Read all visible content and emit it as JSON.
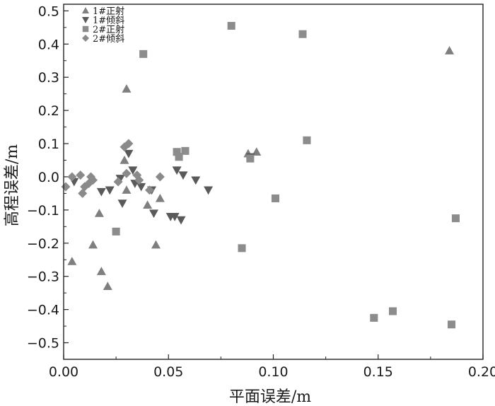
{
  "chart_data": {
    "type": "scatter",
    "title": "",
    "xlabel": "平面误差/m",
    "ylabel": "高程误差/m",
    "xlim": [
      0,
      0.2
    ],
    "ylim": [
      -0.55,
      0.52
    ],
    "xticks": [
      "0.00",
      "0.05",
      "0.10",
      "0.15",
      "0.20"
    ],
    "yticks": [
      "0.5",
      "0.4",
      "0.3",
      "0.2",
      "0.1",
      "0.0",
      "−0.1",
      "−0.2",
      "−0.3",
      "−0.4",
      "−0.5"
    ],
    "grid": false,
    "legend_position": "top-left",
    "series": [
      {
        "name": "1#正射",
        "marker": "triangle-up",
        "color": "#7f7f7f",
        "points": [
          [
            0.004,
            -0.255
          ],
          [
            0.014,
            -0.205
          ],
          [
            0.017,
            -0.11
          ],
          [
            0.018,
            -0.285
          ],
          [
            0.021,
            -0.33
          ],
          [
            0.029,
            0.05
          ],
          [
            0.03,
            0.265
          ],
          [
            0.03,
            -0.04
          ],
          [
            0.04,
            -0.085
          ],
          [
            0.044,
            -0.205
          ],
          [
            0.046,
            -0.065
          ],
          [
            0.088,
            0.07
          ],
          [
            0.092,
            0.075
          ],
          [
            0.184,
            0.38
          ]
        ]
      },
      {
        "name": "1#倾斜",
        "marker": "triangle-down",
        "color": "#5a5a5a",
        "points": [
          [
            0.005,
            -0.015
          ],
          [
            0.018,
            -0.045
          ],
          [
            0.022,
            -0.04
          ],
          [
            0.027,
            -0.005
          ],
          [
            0.028,
            -0.08
          ],
          [
            0.031,
            0.07
          ],
          [
            0.033,
            0.02
          ],
          [
            0.034,
            -0.02
          ],
          [
            0.037,
            -0.03
          ],
          [
            0.042,
            -0.04
          ],
          [
            0.043,
            -0.11
          ],
          [
            0.051,
            -0.12
          ],
          [
            0.053,
            -0.12
          ],
          [
            0.054,
            0.02
          ],
          [
            0.056,
            -0.13
          ],
          [
            0.057,
            0.005
          ],
          [
            0.063,
            -0.01
          ],
          [
            0.069,
            -0.04
          ],
          [
            0.089,
            0.06
          ]
        ]
      },
      {
        "name": "2#正射",
        "marker": "square",
        "color": "#8c8c8c",
        "points": [
          [
            0.025,
            -0.165
          ],
          [
            0.038,
            0.37
          ],
          [
            0.054,
            0.075
          ],
          [
            0.055,
            0.06
          ],
          [
            0.058,
            0.078
          ],
          [
            0.08,
            0.455
          ],
          [
            0.085,
            -0.215
          ],
          [
            0.089,
            0.055
          ],
          [
            0.101,
            -0.065
          ],
          [
            0.114,
            0.43
          ],
          [
            0.116,
            0.11
          ],
          [
            0.148,
            -0.425
          ],
          [
            0.157,
            -0.405
          ],
          [
            0.185,
            -0.445
          ],
          [
            0.187,
            -0.125
          ]
        ]
      },
      {
        "name": "2#倾斜",
        "marker": "diamond",
        "color": "#8a8a8a",
        "points": [
          [
            0.001,
            -0.03
          ],
          [
            0.004,
            0.0
          ],
          [
            0.008,
            0.005
          ],
          [
            0.009,
            -0.05
          ],
          [
            0.01,
            -0.03
          ],
          [
            0.012,
            -0.02
          ],
          [
            0.013,
            0.0
          ],
          [
            0.014,
            -0.01
          ],
          [
            0.026,
            -0.015
          ],
          [
            0.029,
            0.09
          ],
          [
            0.03,
            0.01
          ],
          [
            0.031,
            0.1
          ],
          [
            0.035,
            0.005
          ],
          [
            0.036,
            -0.01
          ],
          [
            0.041,
            -0.04
          ],
          [
            0.046,
            0.0
          ]
        ]
      }
    ]
  }
}
